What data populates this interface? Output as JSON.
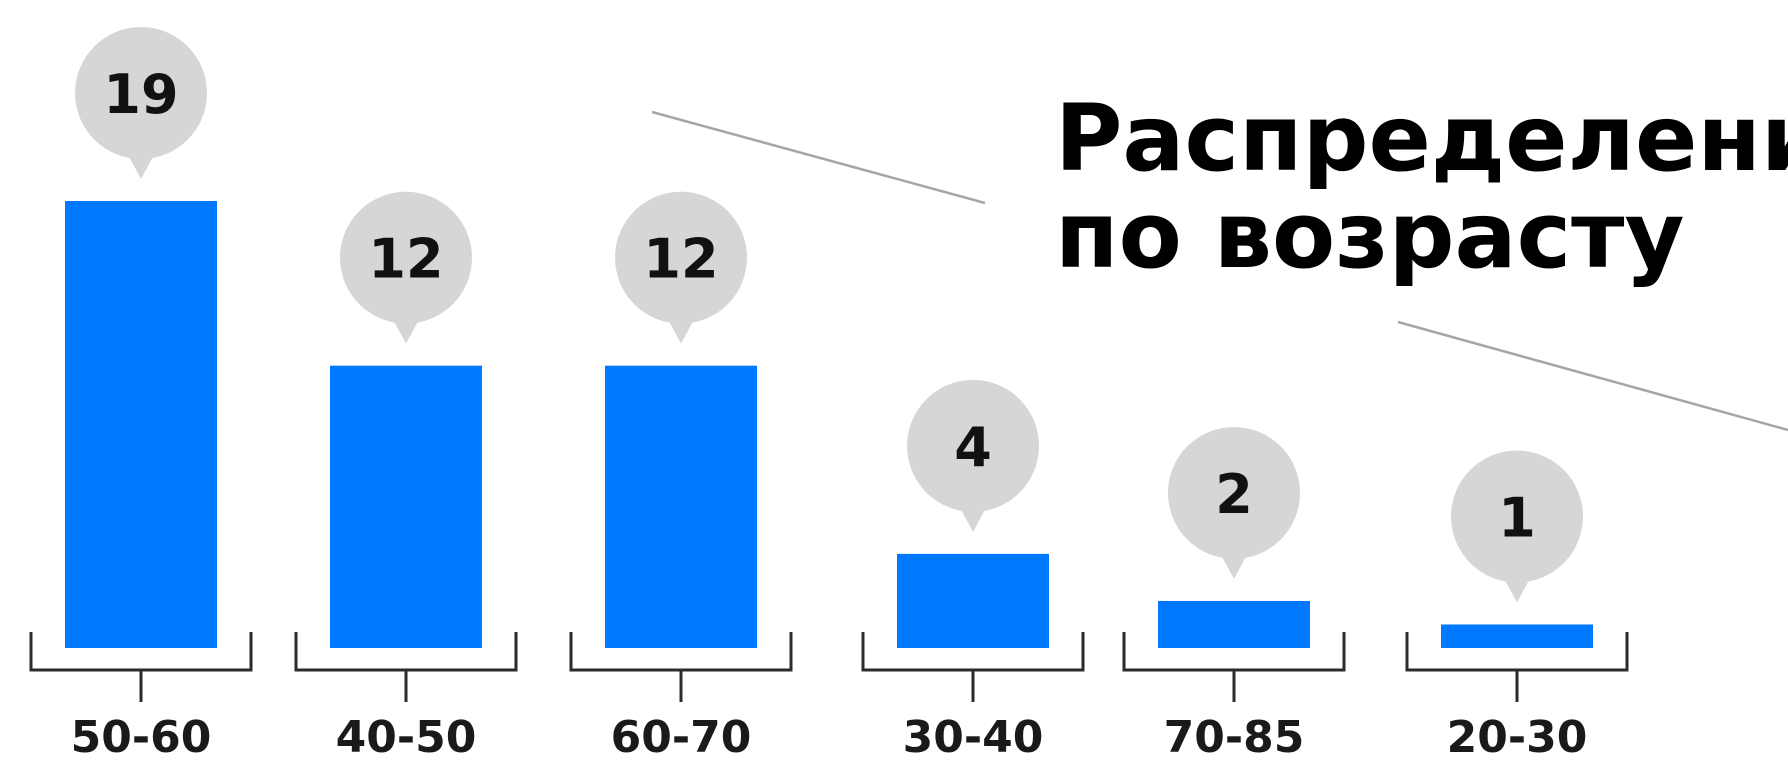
{
  "chart_data": {
    "type": "bar",
    "title": "Распределение по возрасту",
    "title_lines": [
      "Распределение",
      "по возрасту"
    ],
    "categories": [
      "50-60",
      "40-50",
      "60-70",
      "30-40",
      "70-85",
      "20-30"
    ],
    "values": [
      19,
      12,
      12,
      4,
      2,
      1
    ],
    "value_labels": [
      "19",
      "12",
      "12",
      "4",
      "2",
      "1"
    ],
    "xlabel": "",
    "ylabel": "",
    "ylim": [
      0,
      19
    ],
    "grid": false,
    "legend": "none",
    "colors": {
      "bar": "#0078FF",
      "bubble": "#D6D6D6",
      "text": "#111111",
      "bracket": "#2B2B2B",
      "line": "#A6A6A6"
    }
  }
}
